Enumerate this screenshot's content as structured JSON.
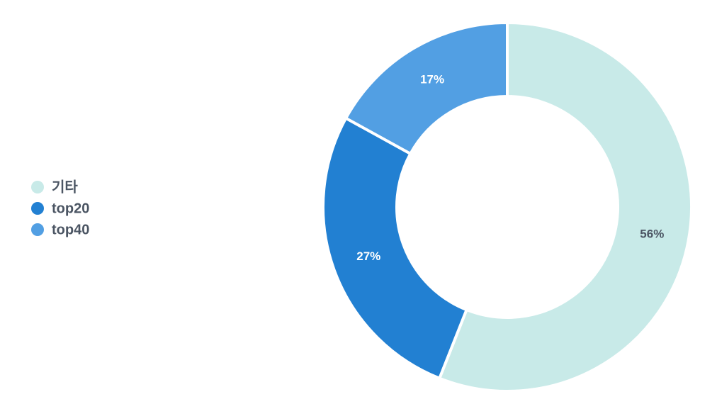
{
  "chart_data": {
    "type": "pie",
    "categories": [
      "기타",
      "top20",
      "top40"
    ],
    "values": [
      56,
      27,
      17
    ],
    "value_labels": [
      "56%",
      "27%",
      "17%"
    ],
    "colors": [
      "#c8eae8",
      "#2280d2",
      "#529fe3"
    ],
    "legend": "left"
  }
}
